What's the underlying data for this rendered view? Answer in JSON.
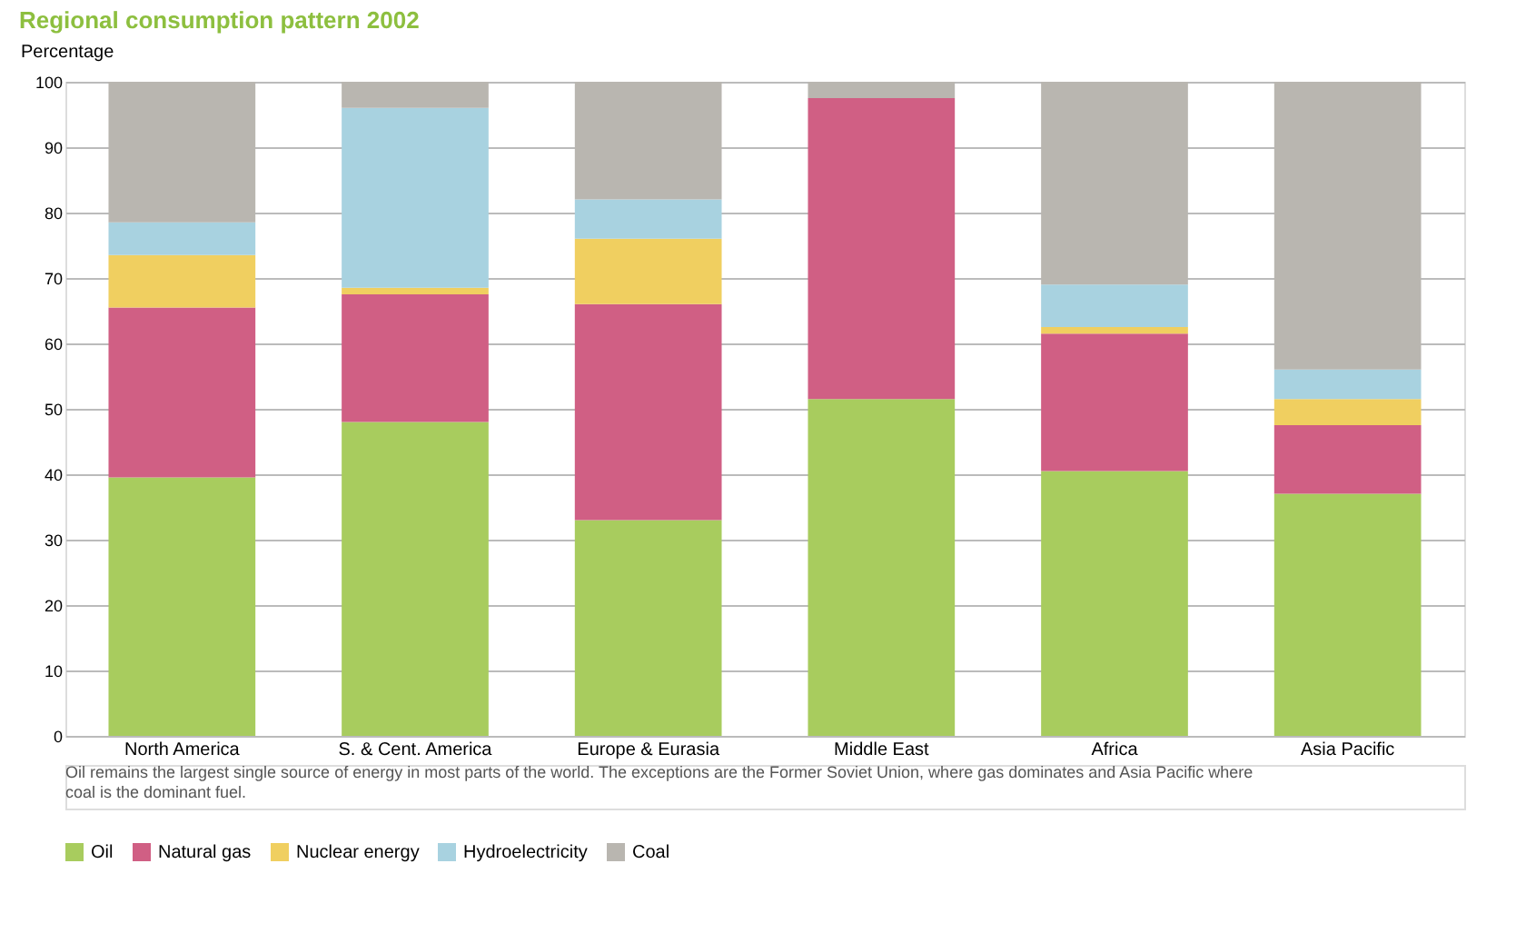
{
  "chart_data": {
    "type": "bar",
    "stacked": true,
    "title": "Regional consumption pattern 2002",
    "ylabel": "Percentage",
    "categories": [
      "North America",
      "S. & Cent. America",
      "Europe & Eurasia",
      "Middle East",
      "Africa",
      "Asia Pacific"
    ],
    "series": [
      {
        "name": "Oil",
        "color": "#a8cc5e",
        "values": [
          39.5,
          48,
          33,
          51.5,
          40.5,
          37
        ]
      },
      {
        "name": "Natural gas",
        "color": "#d05f84",
        "values": [
          26,
          19.5,
          33,
          46,
          21,
          10.5
        ]
      },
      {
        "name": "Nuclear energy",
        "color": "#f0cf60",
        "values": [
          8,
          1,
          10,
          0,
          1,
          4
        ]
      },
      {
        "name": "Hydroelectricity",
        "color": "#a8d2e0",
        "values": [
          5,
          27.5,
          6,
          0,
          6.5,
          4.5
        ]
      },
      {
        "name": "Coal",
        "color": "#b9b6b0",
        "values": [
          21.5,
          4,
          18,
          2.5,
          31,
          44
        ]
      }
    ],
    "ylim": [
      0,
      100
    ],
    "yticks": [
      0,
      10,
      20,
      30,
      40,
      50,
      60,
      70,
      80,
      90,
      100
    ],
    "grid": "y",
    "legend": "bottom",
    "annotations": [
      "Oil remains the largest single source of energy in most parts of the world. The exceptions are the Former Soviet Union, where gas dominates and Asia Pacific where coal is the dominant fuel."
    ]
  }
}
